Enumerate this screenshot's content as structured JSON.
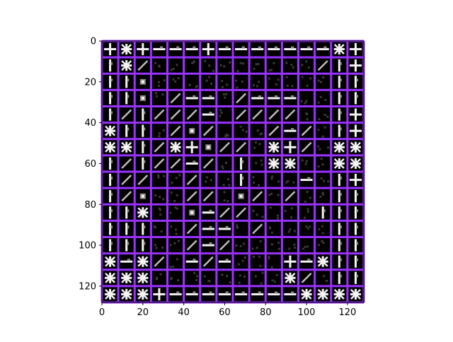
{
  "chart_data": {
    "type": "heatmap",
    "title": "",
    "xlabel": "",
    "ylabel": "",
    "xlim": [
      0,
      128
    ],
    "ylim": [
      128,
      0
    ],
    "x_ticks": [
      0,
      20,
      40,
      60,
      80,
      100,
      120
    ],
    "y_ticks": [
      0,
      20,
      40,
      60,
      80,
      100,
      120
    ],
    "x_tick_labels": [
      "0",
      "20",
      "40",
      "60",
      "80",
      "100",
      "120"
    ],
    "y_tick_labels": [
      "0",
      "20",
      "40",
      "60",
      "80",
      "100",
      "120"
    ],
    "grid_rows": 16,
    "grid_cols": 16,
    "tile_size": 8,
    "grid_color": "#9933ff",
    "background_color": "#000000",
    "tile_patterns": [
      [
        "cross",
        "star",
        "cross",
        "h",
        "h",
        "h",
        "cross",
        "h",
        "h",
        "h",
        "h",
        "h",
        "h",
        "h",
        "star",
        "cross"
      ],
      [
        "v",
        "star",
        "diag",
        "d",
        "d",
        "d",
        "d",
        "d",
        "d",
        "d",
        "d",
        "d",
        "d",
        "diag",
        "v",
        "cross"
      ],
      [
        "v",
        "v",
        "blob",
        "d",
        "d",
        "d",
        "d",
        "d",
        "d",
        "d",
        "d",
        "d",
        "d",
        "d",
        "v",
        "v"
      ],
      [
        "v",
        "v",
        "blob",
        "d",
        "diag",
        "h",
        "h",
        "d",
        "diag",
        "h",
        "h",
        "h",
        "d",
        "d",
        "v",
        "v"
      ],
      [
        "v",
        "diag",
        "v",
        "diag",
        "diag",
        "diag",
        "h",
        "d",
        "diag",
        "diag",
        "diag",
        "diag",
        "d",
        "d",
        "v",
        "cross"
      ],
      [
        "star",
        "v",
        "v",
        "d",
        "diag",
        "blob",
        "diag",
        "d",
        "d",
        "d",
        "diag",
        "h",
        "diag",
        "d",
        "v",
        "cross"
      ],
      [
        "star",
        "star",
        "v",
        "diag",
        "star",
        "cross",
        "blob",
        "diag",
        "diag",
        "d",
        "star",
        "cross",
        "diag",
        "d",
        "star",
        "star"
      ],
      [
        "v",
        "diag",
        "v",
        "diag",
        "diag",
        "h",
        "diag",
        "d",
        "v",
        "d",
        "star",
        "star",
        "d",
        "d",
        "star",
        "star"
      ],
      [
        "v",
        "diag",
        "diag",
        "d",
        "d",
        "diag",
        "d",
        "d",
        "v",
        "d",
        "d",
        "d",
        "h",
        "d",
        "v",
        "cross"
      ],
      [
        "v",
        "diag",
        "blob",
        "d",
        "d",
        "diag",
        "diag",
        "d",
        "blob",
        "diag",
        "d",
        "diag",
        "d",
        "d",
        "v",
        "v"
      ],
      [
        "v",
        "v",
        "star",
        "d",
        "d",
        "blob",
        "h",
        "diag",
        "diag",
        "d",
        "d",
        "d",
        "d",
        "v",
        "v",
        "v"
      ],
      [
        "v",
        "v",
        "v",
        "d",
        "d",
        "diag",
        "h",
        "h",
        "d",
        "diag",
        "d",
        "d",
        "d",
        "d",
        "v",
        "v"
      ],
      [
        "v",
        "v",
        "v",
        "d",
        "d",
        "diag",
        "h",
        "diag",
        "d",
        "d",
        "d",
        "d",
        "d",
        "d",
        "v",
        "v"
      ],
      [
        "star",
        "h",
        "star",
        "diag",
        "d",
        "h",
        "diag",
        "h",
        "d",
        "d",
        "d",
        "cross",
        "h",
        "star",
        "v",
        "v"
      ],
      [
        "star",
        "star",
        "star",
        "d",
        "d",
        "d",
        "d",
        "d",
        "d",
        "d",
        "d",
        "star",
        "diag",
        "d",
        "v",
        "v"
      ],
      [
        "star",
        "star",
        "star",
        "cross",
        "h",
        "h",
        "h",
        "h",
        "h",
        "h",
        "h",
        "h",
        "star",
        "star",
        "star",
        "star"
      ]
    ]
  }
}
